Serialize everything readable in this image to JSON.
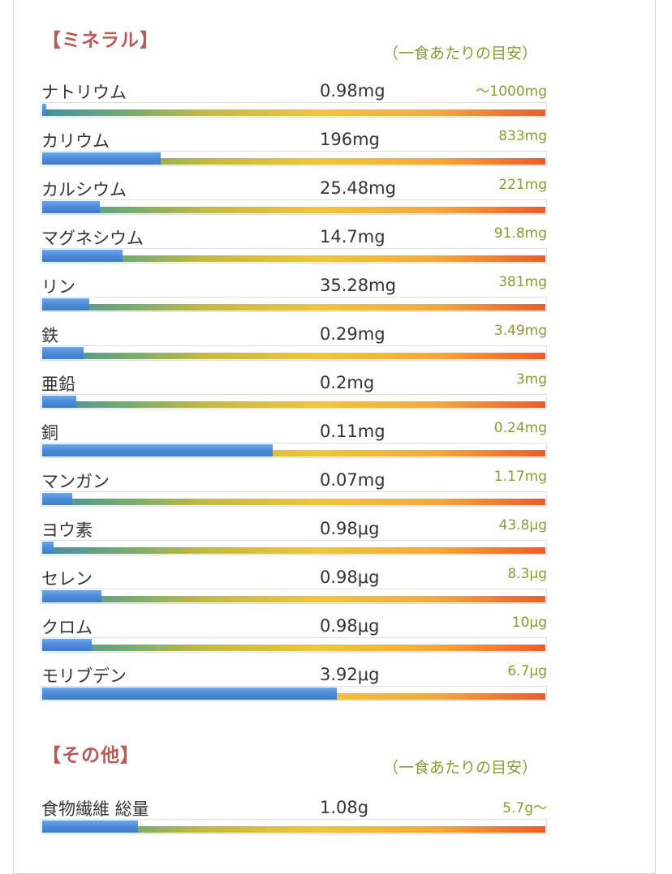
{
  "minerals": {
    "title": "【ミネラル】",
    "per_serving_label": "（一食あたりの目安）",
    "items": [
      {
        "name": "ナトリウム",
        "amount": "0.98mg",
        "target": "〜1000mg",
        "fill_fraction": 0.008
      },
      {
        "name": "カリウム",
        "amount": "196mg",
        "target": "833mg",
        "fill_fraction": 0.235
      },
      {
        "name": "カルシウム",
        "amount": "25.48mg",
        "target": "221mg",
        "fill_fraction": 0.115
      },
      {
        "name": "マグネシウム",
        "amount": "14.7mg",
        "target": "91.8mg",
        "fill_fraction": 0.16
      },
      {
        "name": "リン",
        "amount": "35.28mg",
        "target": "381mg",
        "fill_fraction": 0.093
      },
      {
        "name": "鉄",
        "amount": "0.29mg",
        "target": "3.49mg",
        "fill_fraction": 0.083
      },
      {
        "name": "亜鉛",
        "amount": "0.2mg",
        "target": "3mg",
        "fill_fraction": 0.067
      },
      {
        "name": "銅",
        "amount": "0.11mg",
        "target": "0.24mg",
        "fill_fraction": 0.458
      },
      {
        "name": "マンガン",
        "amount": "0.07mg",
        "target": "1.17mg",
        "fill_fraction": 0.06
      },
      {
        "name": "ヨウ素",
        "amount": "0.98μg",
        "target": "43.8μg",
        "fill_fraction": 0.022
      },
      {
        "name": "セレン",
        "amount": "0.98μg",
        "target": "8.3μg",
        "fill_fraction": 0.118
      },
      {
        "name": "クロム",
        "amount": "0.98μg",
        "target": "10μg",
        "fill_fraction": 0.098
      },
      {
        "name": "モリブデン",
        "amount": "3.92μg",
        "target": "6.7μg",
        "fill_fraction": 0.585
      }
    ]
  },
  "other": {
    "title": "【その他】",
    "per_serving_label": "（一食あたりの目安）",
    "items": [
      {
        "name": "食物繊維 総量",
        "amount": "1.08g",
        "target": "5.7g〜",
        "fill_fraction": 0.19
      }
    ]
  },
  "colors": {
    "section_title": "#b85a5a",
    "target_text": "#8a9a3a",
    "fill_bar": "#4a88d8"
  }
}
